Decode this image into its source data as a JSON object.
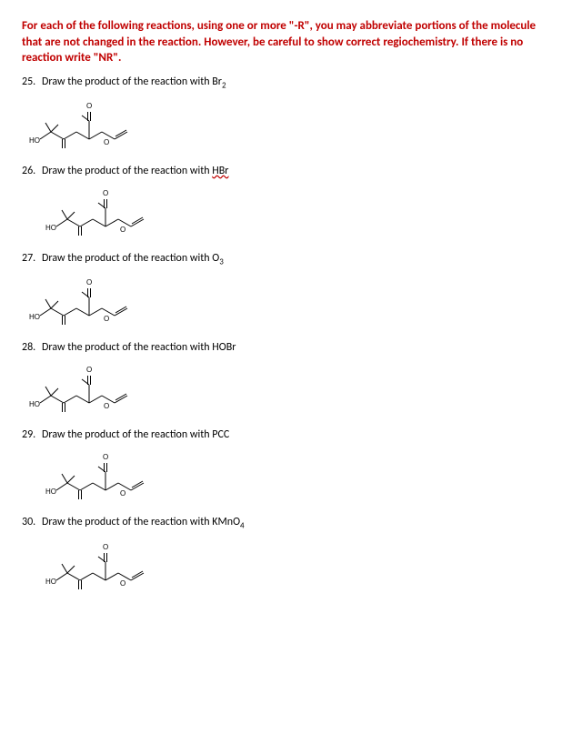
{
  "instructions": "For each of the following reactions, using one or more \"-R\", you may abbreviate portions of the molecule that are not changed in the reaction. However, be careful to show correct regiochemistry. If there is no reaction write \"NR\".",
  "questions": [
    {
      "num": "25.",
      "prefix": "Draw the product of the reaction with ",
      "reagent": "Br",
      "sub": "2",
      "underline": false,
      "indent": 0
    },
    {
      "num": "26.",
      "prefix": "Draw the product of the reaction with ",
      "reagent": "HBr",
      "sub": "",
      "underline": true,
      "indent": 18
    },
    {
      "num": "27.",
      "prefix": "Draw the product of the reaction with ",
      "reagent": "O",
      "sub": "3",
      "underline": false,
      "indent": 0
    },
    {
      "num": "28.",
      "prefix": "Draw the product of the reaction with ",
      "reagent": "HOBr",
      "sub": "",
      "underline": false,
      "indent": 0
    },
    {
      "num": "29.",
      "prefix": "Draw the product of the reaction with ",
      "reagent": "PCC",
      "sub": "",
      "underline": false,
      "indent": 18
    },
    {
      "num": "30.",
      "prefix": "Draw the product of the reaction with ",
      "reagent": "KMnO",
      "sub": "4",
      "underline": false,
      "indent": 18
    }
  ],
  "molecule": {
    "label_ho": "HO",
    "label_o_top": "O",
    "label_o_right": "O",
    "stroke": "#000000",
    "stroke_width": 1,
    "font_size": 8,
    "width": 140,
    "height": 70
  }
}
